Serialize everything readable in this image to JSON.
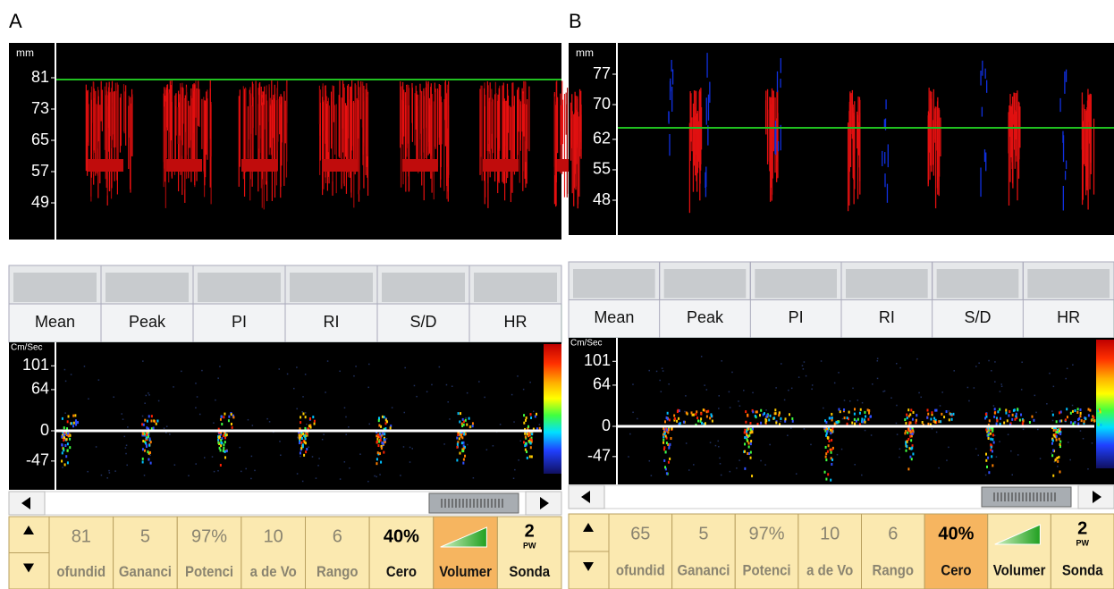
{
  "panels": [
    {
      "label": "A",
      "depth_unit": "mm",
      "depth_ticks": [
        81,
        73,
        65,
        57,
        49
      ],
      "measurements": [
        "Mean",
        "Peak",
        "PI",
        "RI",
        "S/D",
        "HR"
      ],
      "velocity_unit": "Cm/Sec",
      "velocity_ticks": [
        101,
        64,
        0,
        -47
      ],
      "controls": [
        {
          "value": "81",
          "label": "ofundid"
        },
        {
          "value": "5",
          "label": "Gananci"
        },
        {
          "value": "97%",
          "label": "Potenci"
        },
        {
          "value": "10",
          "label": "a de Vo"
        },
        {
          "value": "6",
          "label": "Rango"
        },
        {
          "value": "40%",
          "label": "Cero"
        },
        {
          "label": "Volumer"
        },
        {
          "value": "2",
          "sub": "PW",
          "label": "Sonda"
        }
      ],
      "active_control": 6
    },
    {
      "label": "B",
      "depth_unit": "mm",
      "depth_ticks": [
        77,
        70,
        62,
        55,
        48
      ],
      "measurements": [
        "Mean",
        "Peak",
        "PI",
        "RI",
        "S/D",
        "HR"
      ],
      "velocity_unit": "Cm/Sec",
      "velocity_ticks": [
        101,
        64,
        0,
        -47
      ],
      "controls": [
        {
          "value": "65",
          "label": "ofundid"
        },
        {
          "value": "5",
          "label": "Gananci"
        },
        {
          "value": "97%",
          "label": "Potenci"
        },
        {
          "value": "10",
          "label": "a de Vo"
        },
        {
          "value": "6",
          "label": "Rango"
        },
        {
          "value": "40%",
          "label": "Cero"
        },
        {
          "label": "Volumer"
        },
        {
          "value": "2",
          "sub": "PW",
          "label": "Sonda"
        }
      ],
      "active_control": 5
    }
  ]
}
